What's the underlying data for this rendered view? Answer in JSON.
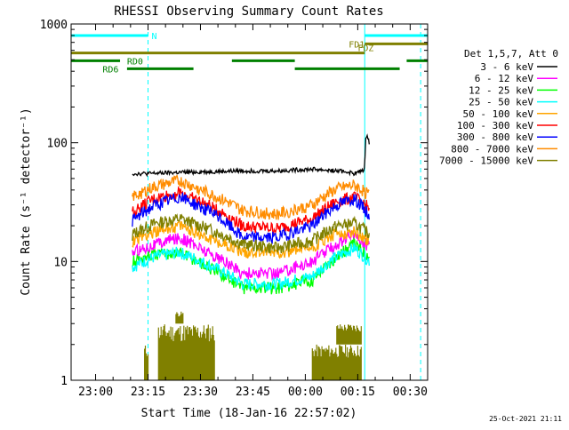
{
  "chart_data": {
    "type": "line",
    "title": "RHESSI Observing Summary Count Rates",
    "xlabel": "Start Time (18-Jan-16 22:57:02)",
    "ylabel": "Count Rate (s⁻¹ detector⁻¹)",
    "y_scale": "log",
    "ylim": [
      1,
      1000
    ],
    "x_unit": "minutes after 22:57:02",
    "xlim": [
      -4,
      98
    ],
    "x_ticks": [
      {
        "x": 3,
        "label": "23:00"
      },
      {
        "x": 18,
        "label": "23:15"
      },
      {
        "x": 33,
        "label": "23:30"
      },
      {
        "x": 48,
        "label": "23:45"
      },
      {
        "x": 63,
        "label": "00:00"
      },
      {
        "x": 78,
        "label": "00:15"
      },
      {
        "x": 93,
        "label": "00:30"
      }
    ],
    "y_ticks": [
      {
        "y": 1,
        "label": "1"
      },
      {
        "y": 10,
        "label": "10"
      },
      {
        "y": 100,
        "label": "100"
      },
      {
        "y": 1000,
        "label": "1000"
      }
    ],
    "legend_title": "Det 1,5,7, Att 0",
    "legend_placement": "right",
    "footer": "25-Oct-2021 21:11",
    "series": [
      {
        "name": "3 - 6 keV",
        "color": "#000000",
        "x": [
          13.5,
          18,
          25,
          35,
          45,
          55,
          65,
          75,
          77,
          78,
          79,
          80,
          80.3,
          80.6,
          81.5
        ],
        "y": [
          55,
          55,
          56,
          57,
          58,
          58,
          60,
          57,
          55,
          56,
          58,
          60,
          105,
          120,
          95
        ]
      },
      {
        "name": "6 - 12 keV",
        "color": "#ff00ff",
        "x": [
          13.5,
          20,
          27,
          35,
          45,
          55,
          65,
          72,
          77,
          81.5
        ],
        "y": [
          12,
          14,
          16,
          12,
          8,
          8,
          10,
          14,
          17,
          13
        ]
      },
      {
        "name": "12 - 25 keV",
        "color": "#00ff00",
        "x": [
          13.5,
          20,
          27,
          35,
          45,
          55,
          65,
          72,
          77,
          81.5
        ],
        "y": [
          10,
          11.5,
          12,
          9,
          6,
          6,
          7,
          11,
          14,
          11
        ]
      },
      {
        "name": "25 - 50 keV",
        "color": "#00ffff",
        "x": [
          13.5,
          20,
          27,
          35,
          45,
          55,
          65,
          72,
          77,
          81.5
        ],
        "y": [
          9,
          11,
          12,
          9.5,
          6.5,
          6.5,
          7.5,
          11,
          13,
          10
        ]
      },
      {
        "name": "50 - 100 keV",
        "color": "#ffa500",
        "x": [
          13.5,
          20,
          27,
          35,
          45,
          55,
          65,
          72,
          77,
          81.5
        ],
        "y": [
          15,
          18,
          20,
          16,
          12,
          12,
          13,
          17,
          18,
          15
        ]
      },
      {
        "name": "100 - 300 keV",
        "color": "#ff0000",
        "x": [
          13.5,
          20,
          27,
          35,
          45,
          55,
          65,
          72,
          77,
          81.5
        ],
        "y": [
          26,
          34,
          38,
          30,
          20,
          19,
          23,
          32,
          35,
          28
        ]
      },
      {
        "name": "300 - 800 keV",
        "color": "#0000ff",
        "x": [
          13.5,
          20,
          27,
          35,
          45,
          55,
          65,
          72,
          77,
          81.5
        ],
        "y": [
          22,
          30,
          35,
          27,
          16,
          16,
          20,
          30,
          34,
          24
        ]
      },
      {
        "name": "800 - 7000 keV",
        "color": "#ff8c00",
        "x": [
          13.5,
          20,
          27,
          35,
          45,
          55,
          65,
          72,
          77,
          81.5
        ],
        "y": [
          35,
          43,
          48,
          38,
          27,
          25,
          30,
          41,
          44,
          36
        ]
      },
      {
        "name": "7000 - 15000 keV",
        "color": "#808000",
        "x": [
          13.5,
          20,
          27,
          35,
          45,
          55,
          65,
          72,
          77,
          81.5
        ],
        "y": [
          17,
          21,
          23,
          19,
          14,
          13,
          15,
          20,
          21,
          17
        ]
      }
    ],
    "flag_bars": [
      {
        "label": "N",
        "color": "#00ffff",
        "y": 800,
        "segments": [
          [
            -4,
            18
          ],
          [
            80,
            98
          ]
        ]
      },
      {
        "label": "FD1",
        "color": "#808000",
        "y": 680,
        "segments": [
          [
            80,
            98
          ]
        ]
      },
      {
        "label": "FDZ",
        "color": "#808000",
        "y": 570,
        "segments": [
          [
            -4,
            80
          ]
        ]
      },
      {
        "label": "RD0",
        "color": "#008000",
        "y": 490,
        "segments": [
          [
            -4,
            10
          ],
          [
            42,
            60
          ],
          [
            92,
            98
          ]
        ]
      },
      {
        "label": "RD6",
        "color": "#008000",
        "y": 420,
        "segments": [
          [
            12,
            31
          ],
          [
            60,
            90
          ]
        ]
      }
    ],
    "attenuator_bars": {
      "color": "#808000",
      "segments": [
        {
          "x": [
            17,
            18
          ],
          "y": [
            1,
            2
          ]
        },
        {
          "x": [
            21,
            37
          ],
          "y": [
            1,
            3
          ]
        },
        {
          "x": [
            26,
            28
          ],
          "y": [
            3,
            3.8
          ]
        },
        {
          "x": [
            65,
            79
          ],
          "y": [
            1,
            2
          ]
        },
        {
          "x": [
            72,
            79
          ],
          "y": [
            2,
            3
          ]
        }
      ]
    },
    "vertical_markers": [
      {
        "x": -4,
        "style": "solid",
        "color": "#00ffff"
      },
      {
        "x": 18,
        "style": "dashed",
        "color": "#00ffff"
      },
      {
        "x": 80,
        "style": "solid",
        "color": "#00ffff"
      },
      {
        "x": 96,
        "style": "dashed",
        "color": "#00ffff"
      }
    ]
  }
}
